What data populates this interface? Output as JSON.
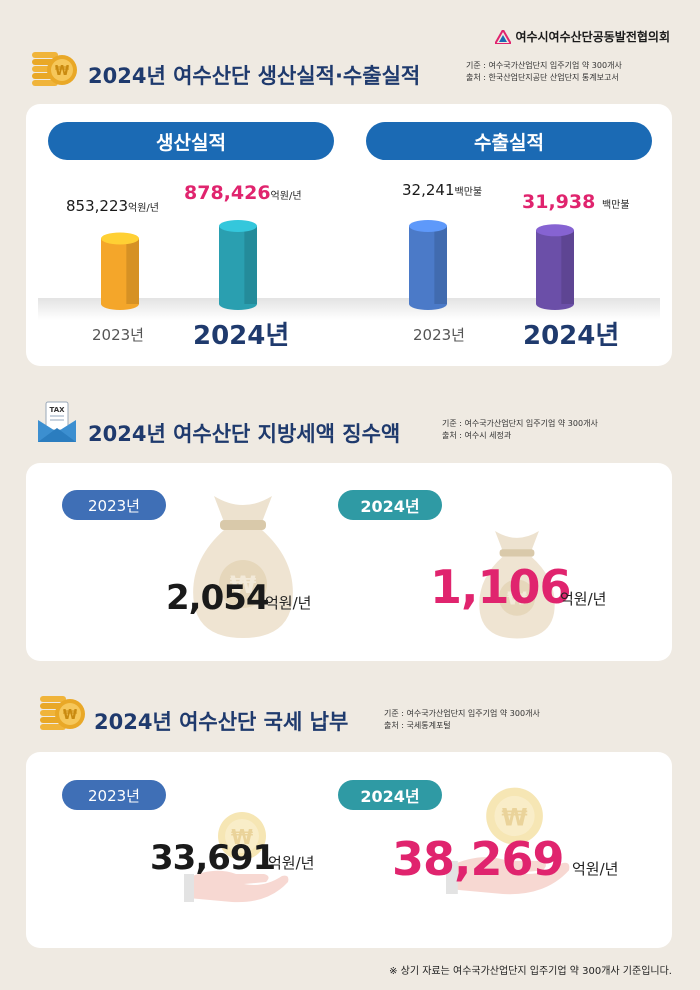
{
  "org_name": "여수시여수산단공동발전협의회",
  "colors": {
    "navy": "#1f3a6d",
    "pink": "#e0246e",
    "pill_blue": "#1b6ab4",
    "teal": "#2f9aa4"
  },
  "icons": {
    "coins": "coin-stack-icon",
    "tax": "tax-envelope-icon",
    "money_bag": "money-bag-icon",
    "hand_coin": "hand-coin-icon"
  },
  "production_section": {
    "title": "2024년 여수산단 생산실적·수출실적",
    "basis": "기준 : 여수국가산업단지 입주기업 약 300개사",
    "source": "출처 : 한국산업단지공단 산업단지 통계보고서",
    "production_label": "생산실적",
    "export_label": "수출실적"
  },
  "tax_section": {
    "title": "2024년 여수산단 지방세액 징수액",
    "basis": "기준 : 여수국가산업단지 입주기업 약 300개사",
    "source": "출처 : 여수시 세정과",
    "tax_icon_text": "TAX",
    "year_2023": "2023년",
    "year_2024": "2024년",
    "value_2023": "2,054",
    "value_2024": "1,106",
    "unit": "억원/년"
  },
  "national_section": {
    "title": "2024년 여수산단 국세 납부",
    "basis": "기준 : 여수국가산업단지 입주기업 약 300개사",
    "source": "출처 : 국세통계포털",
    "year_2023": "2023년",
    "year_2024": "2024년",
    "value_2023": "33,691",
    "value_2024": "38,269",
    "unit": "억원/년"
  },
  "footnote": "※ 상기 자료는 여수국가산업단지 입주기업 약 300개사 기준입니다.",
  "chart_data": [
    {
      "type": "bar",
      "title": "생산실적",
      "categories": [
        "2023년",
        "2024년"
      ],
      "values": [
        853223,
        878426
      ],
      "value_labels": [
        "853,223",
        "878,426"
      ],
      "unit": "억원/년",
      "colors": [
        "#f4a62a",
        "#2a9fb0"
      ]
    },
    {
      "type": "bar",
      "title": "수출실적",
      "categories": [
        "2023년",
        "2024년"
      ],
      "values": [
        32241,
        31938
      ],
      "value_labels": [
        "32,241",
        "31,938"
      ],
      "unit": "백만불",
      "colors": [
        "#4b7ac8",
        "#6b4fa8"
      ]
    }
  ]
}
